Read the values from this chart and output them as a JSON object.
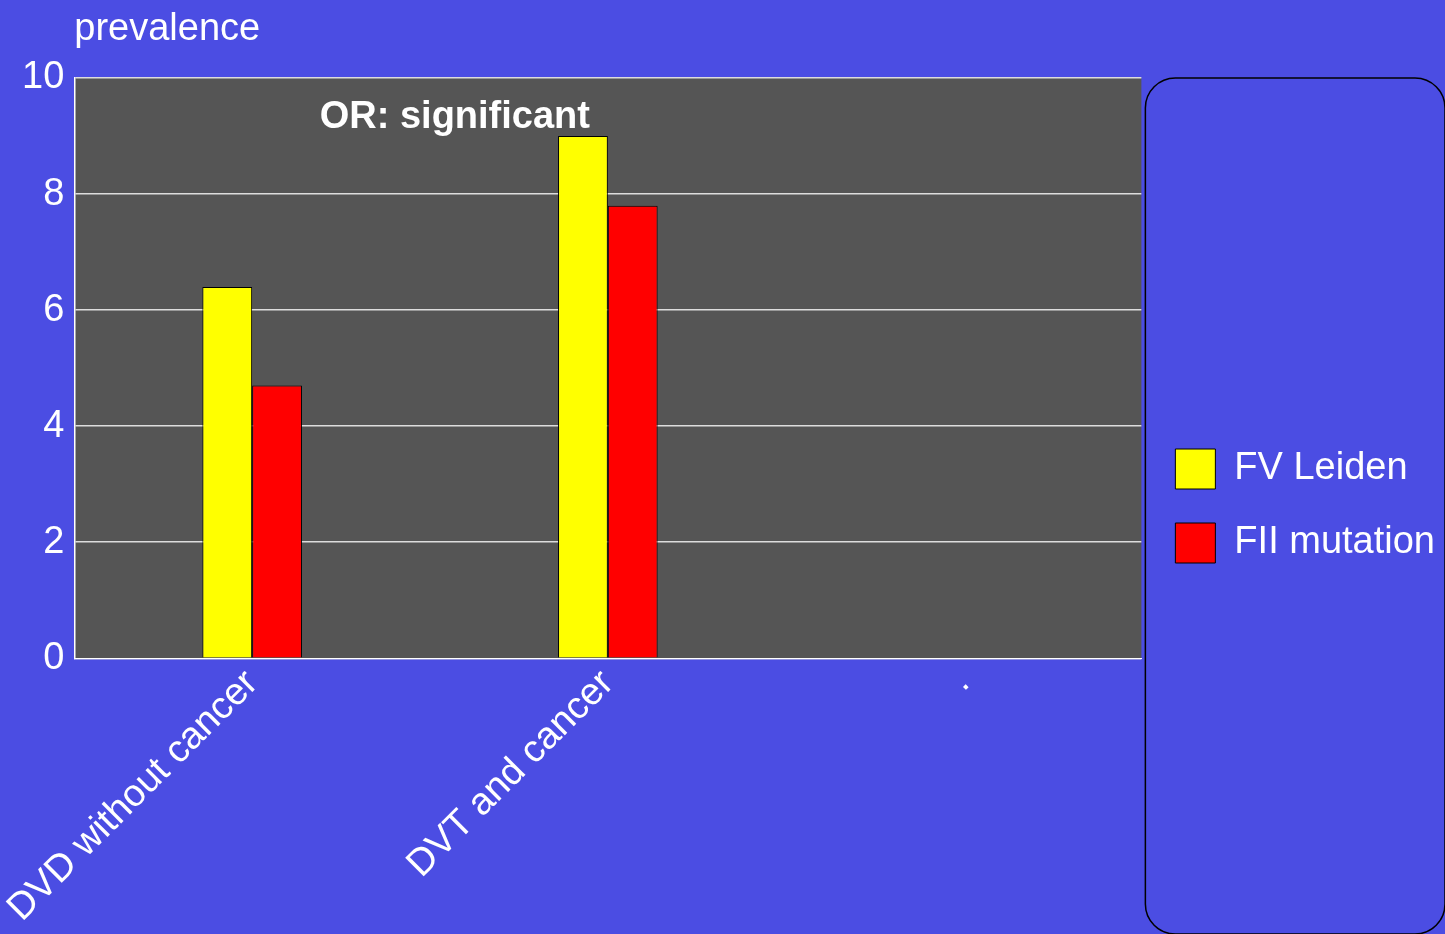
{
  "chart_data": {
    "type": "bar",
    "ylabel": "prevalence",
    "categories": [
      "DVD without cancer",
      "DVT and cancer",
      "."
    ],
    "series": [
      {
        "name": "FV Leiden",
        "color": "#ffff00",
        "values": [
          6.4,
          9.0,
          null
        ]
      },
      {
        "name": "FII mutation",
        "color": "#ff0000",
        "values": [
          4.7,
          7.8,
          null
        ]
      }
    ],
    "ylim": [
      0,
      10
    ],
    "yticks": [
      0,
      2,
      4,
      6,
      8,
      10
    ],
    "grid": "y",
    "legend": "right",
    "annotations": [
      "OR: significant"
    ]
  }
}
